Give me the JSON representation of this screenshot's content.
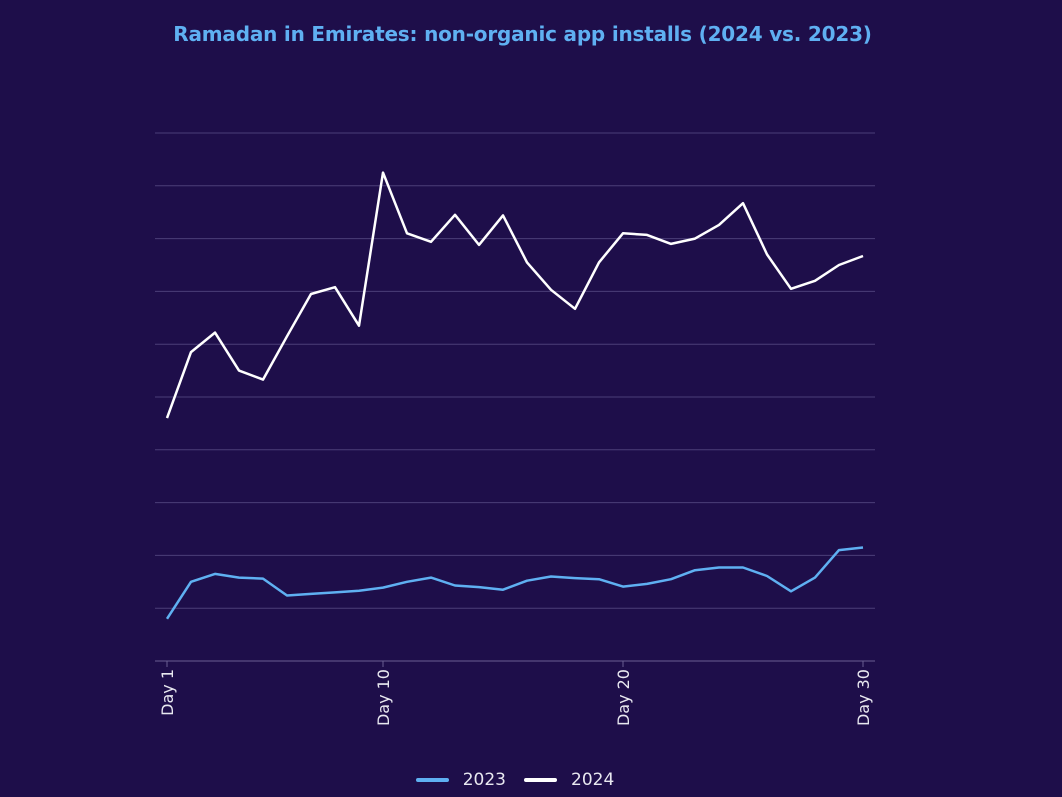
{
  "title": "Ramadan in Emirates: non-organic app installs (2024 vs. 2023)",
  "chart_data": {
    "type": "line",
    "title": "Ramadan in Emirates: non-organic app installs (2024 vs. 2023)",
    "xlabel": "",
    "ylabel": "",
    "x": [
      1,
      2,
      3,
      4,
      5,
      6,
      7,
      8,
      9,
      10,
      11,
      12,
      13,
      14,
      15,
      16,
      17,
      18,
      19,
      20,
      21,
      22,
      23,
      24,
      25,
      26,
      27,
      28,
      29,
      30
    ],
    "x_tick_values": [
      1,
      10,
      20,
      30
    ],
    "x_tick_labels": [
      "Day 1",
      "Day 10",
      "Day 20",
      "Day 30"
    ],
    "ylim": [
      0,
      10
    ],
    "y_gridlines": 11,
    "y_tick_labels_visible": false,
    "grid": true,
    "legend_position": "bottom",
    "series": [
      {
        "name": "2023",
        "color": "#5fb0f2",
        "values": [
          0.8,
          1.5,
          1.65,
          1.58,
          1.56,
          1.24,
          1.27,
          1.3,
          1.33,
          1.39,
          1.5,
          1.58,
          1.43,
          1.4,
          1.35,
          1.52,
          1.6,
          1.57,
          1.55,
          1.41,
          1.46,
          1.55,
          1.72,
          1.77,
          1.77,
          1.61,
          1.32,
          1.58,
          2.1,
          2.15
        ]
      },
      {
        "name": "2024",
        "color": "#ffffff",
        "values": [
          4.6,
          5.85,
          6.22,
          5.5,
          5.33,
          6.15,
          6.95,
          7.08,
          6.35,
          9.25,
          8.1,
          7.94,
          8.45,
          7.88,
          8.44,
          7.55,
          7.03,
          6.67,
          7.55,
          8.1,
          8.07,
          7.9,
          8.0,
          8.26,
          8.67,
          7.7,
          7.05,
          7.2,
          7.5,
          7.67
        ]
      }
    ]
  }
}
